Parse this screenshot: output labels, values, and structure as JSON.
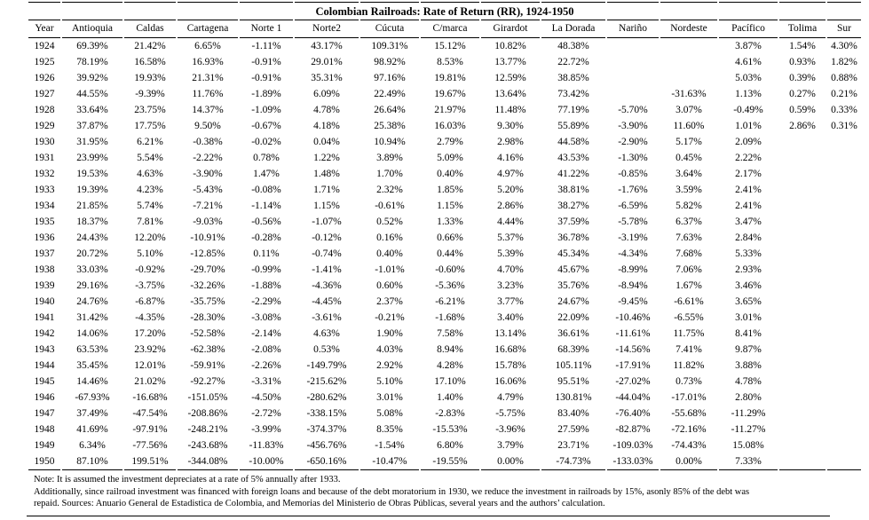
{
  "title": "Colombian Railroads: Rate of Return (RR), 1924-1950",
  "table": {
    "columns": [
      "Year",
      "Antioquia",
      "Caldas",
      "Cartagena",
      "Norte 1",
      "Norte2",
      "Cúcuta",
      "C/marca",
      "Girardot",
      "La Dorada",
      "Nariño",
      "Nordeste",
      "Pacífico",
      "Tolima",
      "Sur"
    ],
    "rows": [
      {
        "year": "1924",
        "values": [
          "69.39%",
          "21.42%",
          "6.65%",
          "-1.11%",
          "43.17%",
          "109.31%",
          "15.12%",
          "10.82%",
          "48.38%",
          "",
          "",
          "3.87%",
          "1.54%",
          "4.30%"
        ]
      },
      {
        "year": "1925",
        "values": [
          "78.19%",
          "16.58%",
          "16.93%",
          "-0.91%",
          "29.01%",
          "98.92%",
          "8.53%",
          "13.77%",
          "22.72%",
          "",
          "",
          "4.61%",
          "0.93%",
          "1.82%"
        ]
      },
      {
        "year": "1926",
        "values": [
          "39.92%",
          "19.93%",
          "21.31%",
          "-0.91%",
          "35.31%",
          "97.16%",
          "19.81%",
          "12.59%",
          "38.85%",
          "",
          "",
          "5.03%",
          "0.39%",
          "0.88%"
        ]
      },
      {
        "year": "1927",
        "values": [
          "44.55%",
          "-9.39%",
          "11.76%",
          "-1.89%",
          "6.09%",
          "22.49%",
          "19.67%",
          "13.64%",
          "73.42%",
          "",
          "-31.63%",
          "1.13%",
          "0.27%",
          "0.21%"
        ]
      },
      {
        "year": "1928",
        "values": [
          "33.64%",
          "23.75%",
          "14.37%",
          "-1.09%",
          "4.78%",
          "26.64%",
          "21.97%",
          "11.48%",
          "77.19%",
          "-5.70%",
          "3.07%",
          "-0.49%",
          "0.59%",
          "0.33%"
        ]
      },
      {
        "year": "1929",
        "values": [
          "37.87%",
          "17.75%",
          "9.50%",
          "-0.67%",
          "4.18%",
          "25.38%",
          "16.03%",
          "9.30%",
          "55.89%",
          "-3.90%",
          "11.60%",
          "1.01%",
          "2.86%",
          "0.31%"
        ]
      },
      {
        "year": "1930",
        "values": [
          "31.95%",
          "6.21%",
          "-0.38%",
          "-0.02%",
          "0.04%",
          "10.94%",
          "2.79%",
          "2.98%",
          "44.58%",
          "-2.90%",
          "5.17%",
          "2.09%",
          "",
          ""
        ]
      },
      {
        "year": "1931",
        "values": [
          "23.99%",
          "5.54%",
          "-2.22%",
          "0.78%",
          "1.22%",
          "3.89%",
          "5.09%",
          "4.16%",
          "43.53%",
          "-1.30%",
          "0.45%",
          "2.22%",
          "",
          ""
        ]
      },
      {
        "year": "1932",
        "values": [
          "19.53%",
          "4.63%",
          "-3.90%",
          "1.47%",
          "1.48%",
          "1.70%",
          "0.40%",
          "4.97%",
          "41.22%",
          "-0.85%",
          "3.64%",
          "2.17%",
          "",
          ""
        ]
      },
      {
        "year": "1933",
        "values": [
          "19.39%",
          "4.23%",
          "-5.43%",
          "-0.08%",
          "1.71%",
          "2.32%",
          "1.85%",
          "5.20%",
          "38.81%",
          "-1.76%",
          "3.59%",
          "2.41%",
          "",
          ""
        ]
      },
      {
        "year": "1934",
        "values": [
          "21.85%",
          "5.74%",
          "-7.21%",
          "-1.14%",
          "1.15%",
          "-0.61%",
          "1.15%",
          "2.86%",
          "38.27%",
          "-6.59%",
          "5.82%",
          "2.41%",
          "",
          ""
        ]
      },
      {
        "year": "1935",
        "values": [
          "18.37%",
          "7.81%",
          "-9.03%",
          "-0.56%",
          "-1.07%",
          "0.52%",
          "1.33%",
          "4.44%",
          "37.59%",
          "-5.78%",
          "6.37%",
          "3.47%",
          "",
          ""
        ]
      },
      {
        "year": "1936",
        "values": [
          "24.43%",
          "12.20%",
          "-10.91%",
          "-0.28%",
          "-0.12%",
          "0.16%",
          "0.66%",
          "5.37%",
          "36.78%",
          "-3.19%",
          "7.63%",
          "2.84%",
          "",
          ""
        ]
      },
      {
        "year": "1937",
        "values": [
          "20.72%",
          "5.10%",
          "-12.85%",
          "0.11%",
          "-0.74%",
          "0.40%",
          "0.44%",
          "5.39%",
          "45.34%",
          "-4.34%",
          "7.68%",
          "5.33%",
          "",
          ""
        ]
      },
      {
        "year": "1938",
        "values": [
          "33.03%",
          "-0.92%",
          "-29.70%",
          "-0.99%",
          "-1.41%",
          "-1.01%",
          "-0.60%",
          "4.70%",
          "45.67%",
          "-8.99%",
          "7.06%",
          "2.93%",
          "",
          ""
        ]
      },
      {
        "year": "1939",
        "values": [
          "29.16%",
          "-3.75%",
          "-32.26%",
          "-1.88%",
          "-4.36%",
          "0.60%",
          "-5.36%",
          "3.23%",
          "35.76%",
          "-8.94%",
          "1.67%",
          "3.46%",
          "",
          ""
        ]
      },
      {
        "year": "1940",
        "values": [
          "24.76%",
          "-6.87%",
          "-35.75%",
          "-2.29%",
          "-4.45%",
          "2.37%",
          "-6.21%",
          "3.77%",
          "24.67%",
          "-9.45%",
          "-6.61%",
          "3.65%",
          "",
          ""
        ]
      },
      {
        "year": "1941",
        "values": [
          "31.42%",
          "-4.35%",
          "-28.30%",
          "-3.08%",
          "-3.61%",
          "-0.21%",
          "-1.68%",
          "3.40%",
          "22.09%",
          "-10.46%",
          "-6.55%",
          "3.01%",
          "",
          ""
        ]
      },
      {
        "year": "1942",
        "values": [
          "14.06%",
          "17.20%",
          "-52.58%",
          "-2.14%",
          "4.63%",
          "1.90%",
          "7.58%",
          "13.14%",
          "36.61%",
          "-11.61%",
          "11.75%",
          "8.41%",
          "",
          ""
        ]
      },
      {
        "year": "1943",
        "values": [
          "63.53%",
          "23.92%",
          "-62.38%",
          "-2.08%",
          "0.53%",
          "4.03%",
          "8.94%",
          "16.68%",
          "68.39%",
          "-14.56%",
          "7.41%",
          "9.87%",
          "",
          ""
        ]
      },
      {
        "year": "1944",
        "values": [
          "35.45%",
          "12.01%",
          "-59.91%",
          "-2.26%",
          "-149.79%",
          "2.92%",
          "4.28%",
          "15.78%",
          "105.11%",
          "-17.91%",
          "11.82%",
          "3.88%",
          "",
          ""
        ]
      },
      {
        "year": "1945",
        "values": [
          "14.46%",
          "21.02%",
          "-92.27%",
          "-3.31%",
          "-215.62%",
          "5.10%",
          "17.10%",
          "16.06%",
          "95.51%",
          "-27.02%",
          "0.73%",
          "4.78%",
          "",
          ""
        ]
      },
      {
        "year": "1946",
        "values": [
          "-67.93%",
          "-16.68%",
          "-151.05%",
          "-4.50%",
          "-280.62%",
          "3.01%",
          "1.40%",
          "4.79%",
          "130.81%",
          "-44.04%",
          "-17.01%",
          "2.80%",
          "",
          ""
        ]
      },
      {
        "year": "1947",
        "values": [
          "37.49%",
          "-47.54%",
          "-208.86%",
          "-2.72%",
          "-338.15%",
          "5.08%",
          "-2.83%",
          "-5.75%",
          "83.40%",
          "-76.40%",
          "-55.68%",
          "-11.29%",
          "",
          ""
        ]
      },
      {
        "year": "1948",
        "values": [
          "41.69%",
          "-97.91%",
          "-248.21%",
          "-3.99%",
          "-374.37%",
          "8.35%",
          "-15.53%",
          "-3.96%",
          "27.59%",
          "-82.87%",
          "-72.16%",
          "-11.27%",
          "",
          ""
        ]
      },
      {
        "year": "1949",
        "values": [
          "6.34%",
          "-77.56%",
          "-243.68%",
          "-11.83%",
          "-456.76%",
          "-1.54%",
          "6.80%",
          "3.79%",
          "23.71%",
          "-109.03%",
          "-74.43%",
          "15.08%",
          "",
          ""
        ]
      },
      {
        "year": "1950",
        "values": [
          "87.10%",
          "199.51%",
          "-344.08%",
          "-10.00%",
          "-650.16%",
          "-10.47%",
          "-19.55%",
          "0.00%",
          "-74.73%",
          "-133.03%",
          "0.00%",
          "7.33%",
          "",
          ""
        ]
      }
    ]
  },
  "notes": {
    "line1": "Note: It is assumed the investment depreciates at a rate of 5% annually after 1933.",
    "line2": "Additionally, since railroad investment was financed with foreign loans and because of the debt moratorium in 1930, we reduce the investment in railroads by 15%, asonly 85% of the debt was",
    "line3": "repaid. Sources: Anuario General de Estadistica de Colombia, and Memorias del Ministerio de Obras Públicas, several years and the authors’ calculation."
  }
}
